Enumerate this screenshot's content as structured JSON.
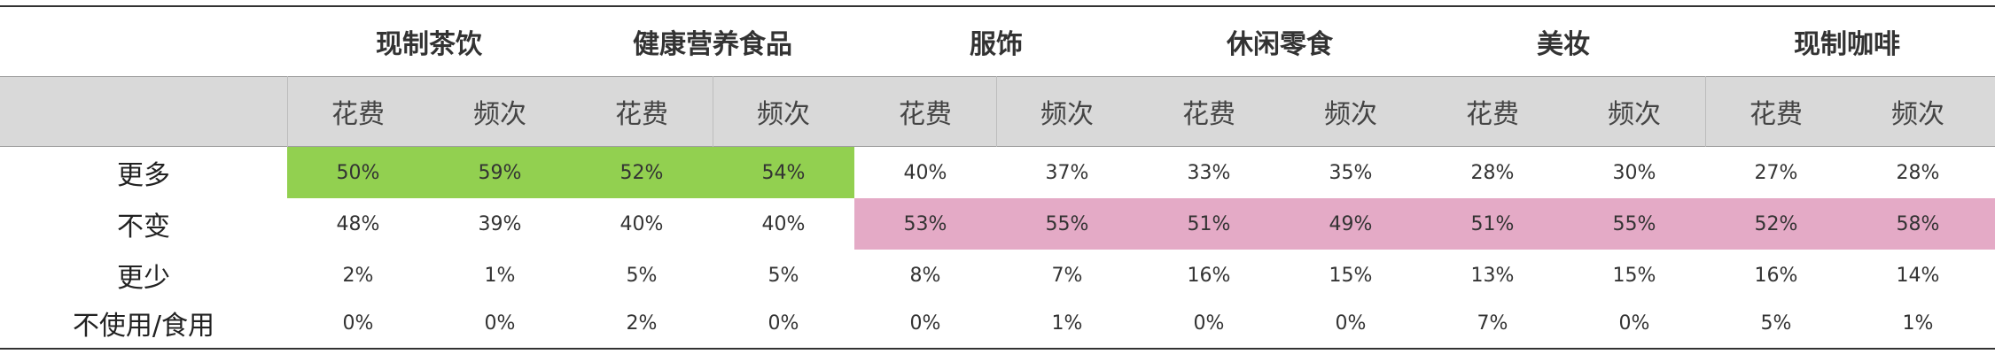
{
  "categories": [
    "现制茶饮",
    "健康营养食品",
    "服饰",
    "休闲零食",
    "美妆",
    "现制咖啡"
  ],
  "subheaders": [
    "花费",
    "频次",
    "花费",
    "频次",
    "花费",
    "频次",
    "花费",
    "频次",
    "花费",
    "频次",
    "花费",
    "频次"
  ],
  "rows": [
    {
      "label": "更多",
      "values": [
        "50%",
        "59%",
        "52%",
        "54%",
        "40%",
        "37%",
        "33%",
        "35%",
        "28%",
        "30%",
        "27%",
        "28%"
      ]
    },
    {
      "label": "不变",
      "values": [
        "48%",
        "39%",
        "40%",
        "40%",
        "53%",
        "55%",
        "51%",
        "49%",
        "51%",
        "55%",
        "52%",
        "58%"
      ]
    },
    {
      "label": "更少",
      "values": [
        "2%",
        "1%",
        "5%",
        "5%",
        "8%",
        "7%",
        "16%",
        "15%",
        "13%",
        "15%",
        "16%",
        "14%"
      ]
    },
    {
      "label": "不使用/食用",
      "values": [
        "0%",
        "0%",
        "2%",
        "0%",
        "0%",
        "1%",
        "0%",
        "0%",
        "7%",
        "0%",
        "5%",
        "1%"
      ]
    }
  ],
  "highlights": {
    "green_color": "#92d050",
    "pink_color": "#e4aac6"
  }
}
